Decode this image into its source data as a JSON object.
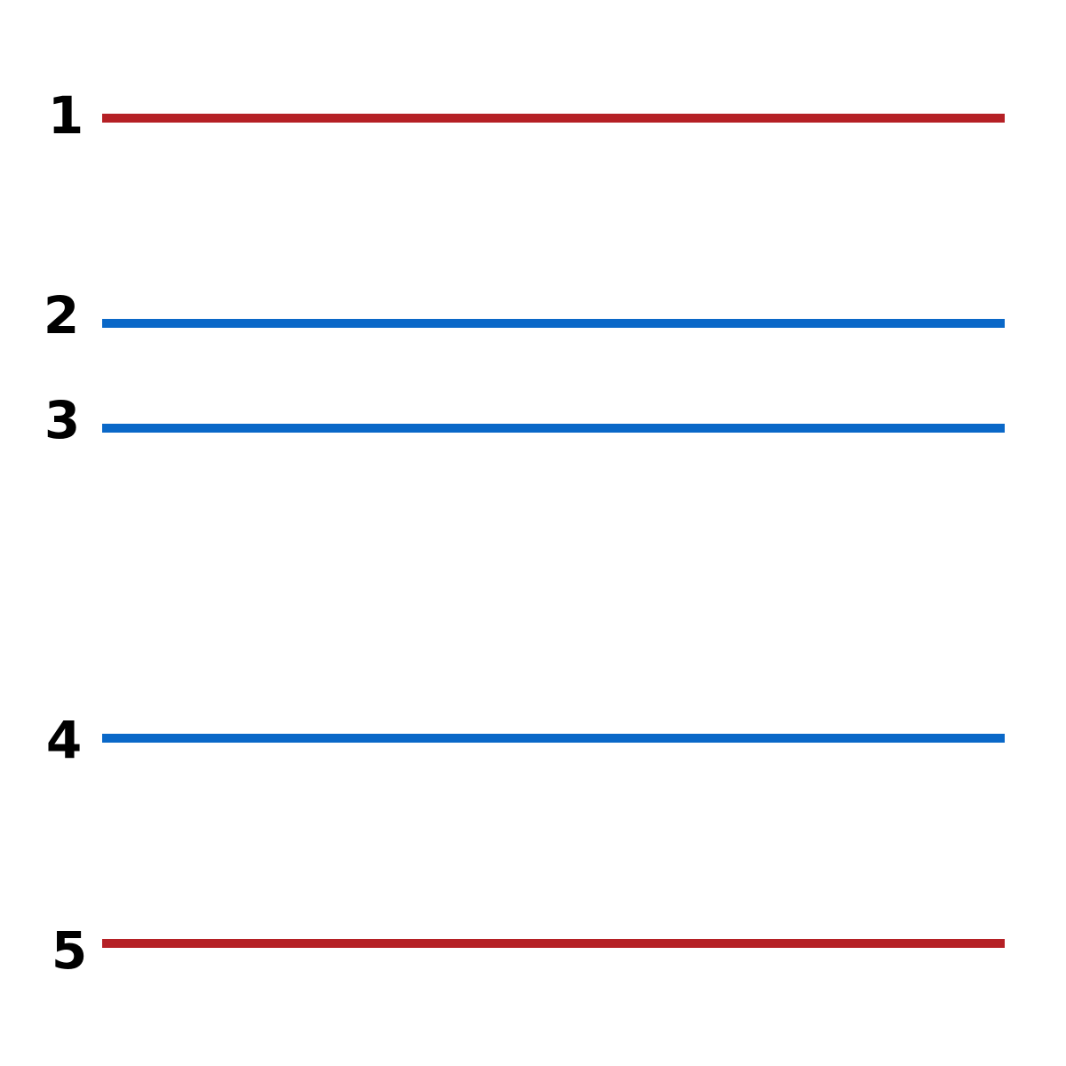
{
  "rows": [
    {
      "label": "1",
      "color": "#B52025"
    },
    {
      "label": "2",
      "color": "#0A68C8"
    },
    {
      "label": "3",
      "color": "#0A68C8"
    },
    {
      "label": "4",
      "color": "#0A68C8"
    },
    {
      "label": "5",
      "color": "#B52025"
    }
  ]
}
